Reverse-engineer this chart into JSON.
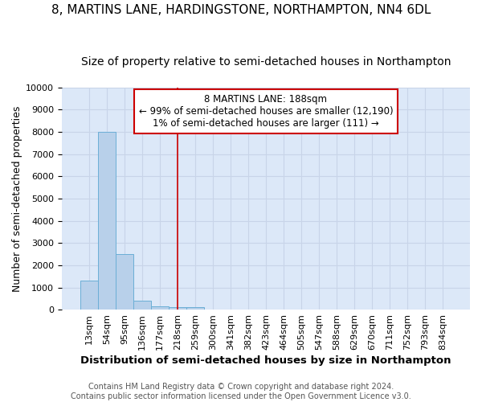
{
  "title1": "8, MARTINS LANE, HARDINGSTONE, NORTHAMPTON, NN4 6DL",
  "title2": "Size of property relative to semi-detached houses in Northampton",
  "xlabel": "Distribution of semi-detached houses by size in Northampton",
  "ylabel": "Number of semi-detached properties",
  "categories": [
    "13sqm",
    "54sqm",
    "95sqm",
    "136sqm",
    "177sqm",
    "218sqm",
    "259sqm",
    "300sqm",
    "341sqm",
    "382sqm",
    "423sqm",
    "464sqm",
    "505sqm",
    "547sqm",
    "588sqm",
    "629sqm",
    "670sqm",
    "711sqm",
    "752sqm",
    "793sqm",
    "834sqm"
  ],
  "values": [
    1300,
    8000,
    2500,
    400,
    150,
    100,
    100,
    0,
    0,
    0,
    0,
    0,
    0,
    0,
    0,
    0,
    0,
    0,
    0,
    0,
    0
  ],
  "bar_color": "#b8d0ea",
  "bar_edge_color": "#6baed6",
  "red_line_x": 5.0,
  "annotation_text": "8 MARTINS LANE: 188sqm\n← 99% of semi-detached houses are smaller (12,190)\n1% of semi-detached houses are larger (111) →",
  "annotation_box_color": "#ffffff",
  "annotation_edge_color": "#cc0000",
  "ylim": [
    0,
    10000
  ],
  "yticks": [
    0,
    1000,
    2000,
    3000,
    4000,
    5000,
    6000,
    7000,
    8000,
    9000,
    10000
  ],
  "grid_color": "#c8d4e8",
  "background_color": "#dce8f8",
  "footer_text": "Contains HM Land Registry data © Crown copyright and database right 2024.\nContains public sector information licensed under the Open Government Licence v3.0.",
  "title1_fontsize": 11,
  "title2_fontsize": 10,
  "xlabel_fontsize": 9.5,
  "ylabel_fontsize": 9,
  "tick_fontsize": 8,
  "red_line_color": "#cc0000",
  "footer_fontsize": 7
}
